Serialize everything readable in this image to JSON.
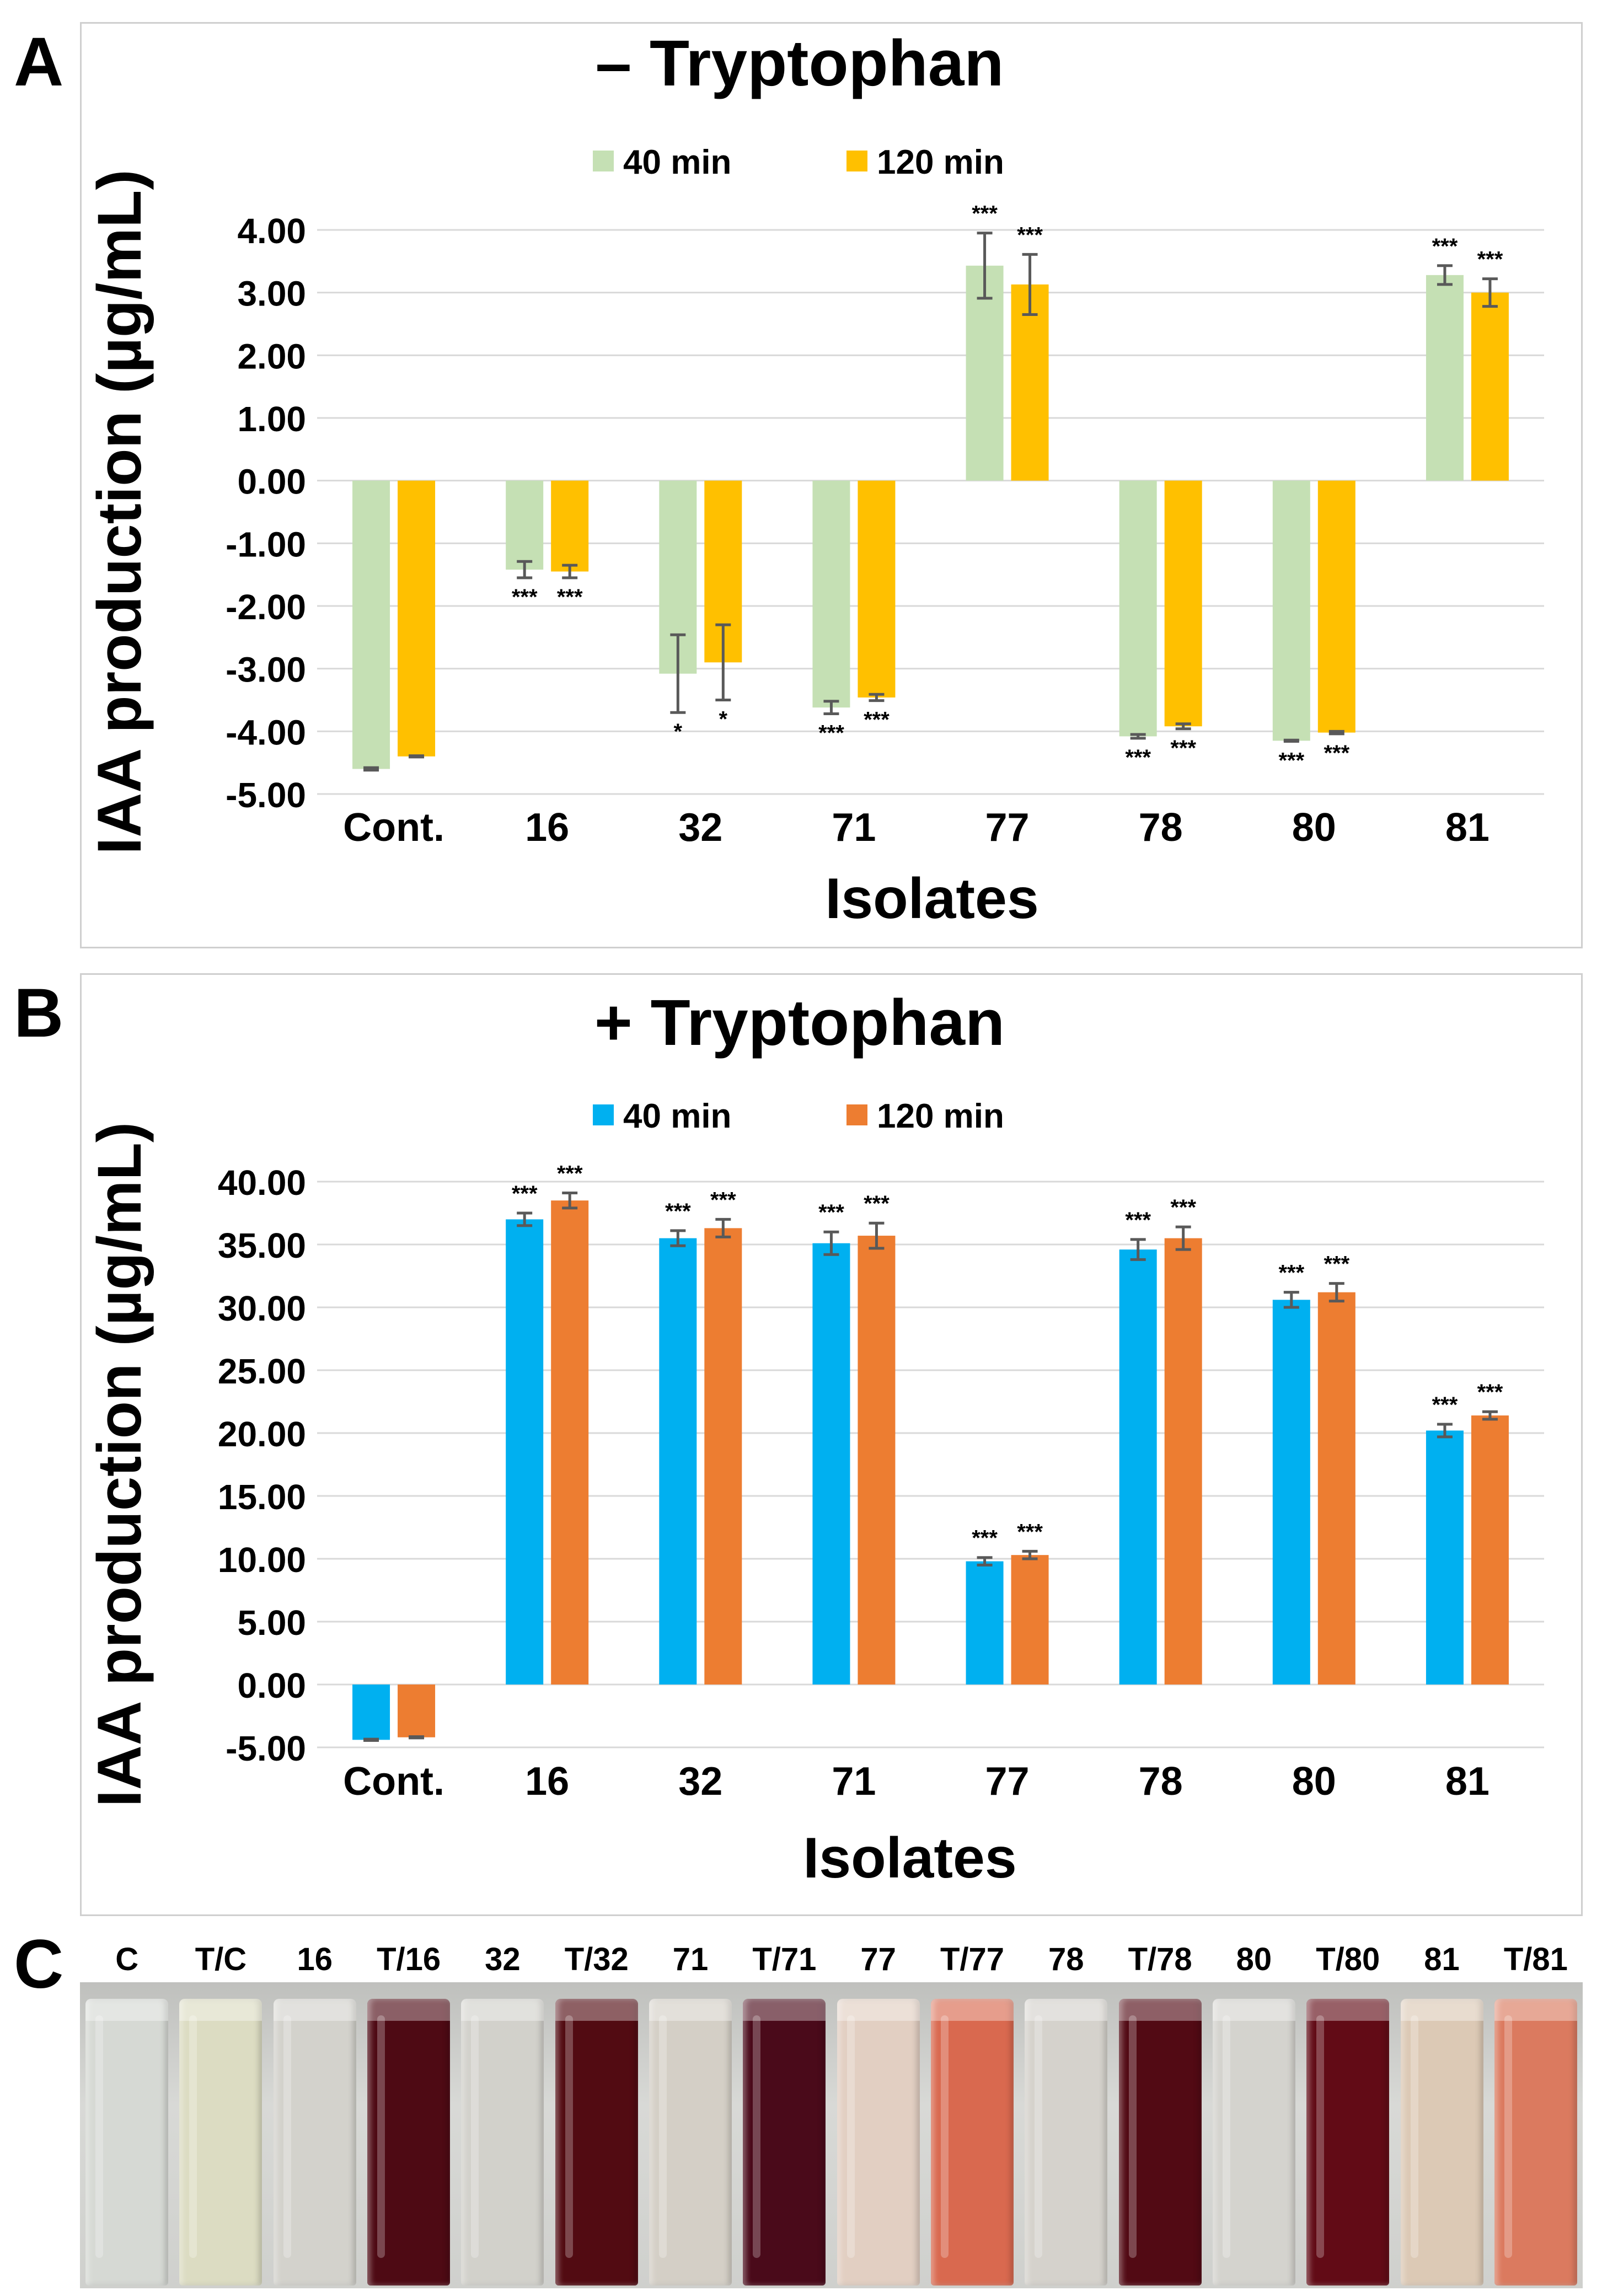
{
  "panel_letters": {
    "a": "A",
    "b": "B",
    "c": "C"
  },
  "colors": {
    "green": "#c5e0b4",
    "gold": "#ffc000",
    "blue": "#00b0f0",
    "orange": "#ed7d31",
    "error": "#595959",
    "grid": "#d9d9d9"
  },
  "chart_data": [
    {
      "type": "bar",
      "title_sign": "–",
      "title": "Tryptophan",
      "xlabel": "Isolates",
      "ylabel": "IAA production (µg/mL)",
      "categories": [
        "Cont.",
        "16",
        "32",
        "71",
        "77",
        "78",
        "80",
        "81"
      ],
      "yticks": [
        "4.00",
        "3.00",
        "2.00",
        "1.00",
        "0.00",
        "-1.00",
        "-2.00",
        "-3.00",
        "-4.00",
        "-5.00"
      ],
      "ylim": [
        -5,
        4
      ],
      "legend_position": "top-center",
      "series": [
        {
          "name": "40 min",
          "values": [
            -4.6,
            -1.42,
            -3.08,
            -3.62,
            3.43,
            -4.08,
            -4.15,
            3.28
          ],
          "errors": [
            0.02,
            0.13,
            0.62,
            0.1,
            0.52,
            0.03,
            0.01,
            0.15
          ],
          "stars": [
            "",
            "***",
            "*",
            "***",
            "***",
            "***",
            "***",
            "***"
          ]
        },
        {
          "name": "120 min",
          "values": [
            -4.4,
            -1.45,
            -2.9,
            -3.46,
            3.13,
            -3.92,
            -4.02,
            3.0
          ],
          "errors": [
            0.01,
            0.1,
            0.6,
            0.05,
            0.48,
            0.04,
            0.02,
            0.22
          ],
          "stars": [
            "",
            "***",
            "*",
            "***",
            "***",
            "***",
            "***",
            "***"
          ]
        }
      ]
    },
    {
      "type": "bar",
      "title_sign": "+",
      "title": "Tryptophan",
      "xlabel": "Isolates",
      "ylabel": "IAA production (µg/mL)",
      "categories": [
        "Cont.",
        "16",
        "32",
        "71",
        "77",
        "78",
        "80",
        "81"
      ],
      "yticks": [
        "40.00",
        "35.00",
        "30.00",
        "25.00",
        "20.00",
        "15.00",
        "10.00",
        "5.00",
        "0.00",
        "-5.00"
      ],
      "ylim": [
        -5,
        40
      ],
      "legend_position": "top-center",
      "series": [
        {
          "name": "40 min",
          "values": [
            -4.4,
            37.0,
            35.5,
            35.1,
            9.8,
            34.6,
            30.6,
            20.2
          ],
          "errors": [
            0.05,
            0.5,
            0.6,
            0.9,
            0.3,
            0.8,
            0.6,
            0.5
          ],
          "stars": [
            "",
            "***",
            "***",
            "***",
            "***",
            "***",
            "***",
            "***"
          ]
        },
        {
          "name": "120 min",
          "values": [
            -4.2,
            38.5,
            36.3,
            35.7,
            10.3,
            35.5,
            31.2,
            21.4
          ],
          "errors": [
            0.05,
            0.6,
            0.7,
            1.0,
            0.3,
            0.9,
            0.7,
            0.3
          ],
          "stars": [
            "",
            "***",
            "***",
            "***",
            "***",
            "***",
            "***",
            "***"
          ]
        }
      ]
    }
  ],
  "photo": {
    "tubes": [
      {
        "label": "C",
        "color": "#d6d9d4"
      },
      {
        "label": "T/C",
        "color": "#dcdcc2"
      },
      {
        "label": "16",
        "color": "#d3d2cc"
      },
      {
        "label": "T/16",
        "color": "#4e0a14"
      },
      {
        "label": "32",
        "color": "#d2d1cb"
      },
      {
        "label": "T/32",
        "color": "#520b12"
      },
      {
        "label": "71",
        "color": "#d4cfc6"
      },
      {
        "label": "T/71",
        "color": "#4a0a1a"
      },
      {
        "label": "77",
        "color": "#e2cfc2"
      },
      {
        "label": "T/77",
        "color": "#d9694f"
      },
      {
        "label": "78",
        "color": "#d5d2cc"
      },
      {
        "label": "T/78",
        "color": "#520a14"
      },
      {
        "label": "80",
        "color": "#d4d3ce"
      },
      {
        "label": "T/80",
        "color": "#620b16"
      },
      {
        "label": "81",
        "color": "#dcc9b5"
      },
      {
        "label": "T/81",
        "color": "#db7a5f"
      }
    ]
  }
}
